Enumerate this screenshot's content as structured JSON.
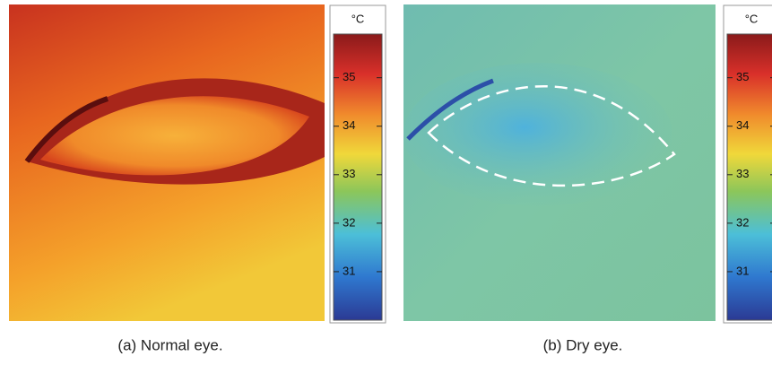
{
  "panels": [
    {
      "unit": "°C",
      "colorbar": {
        "range": [
          30,
          35.9
        ],
        "ticks": [
          35,
          34,
          33,
          32,
          31
        ]
      },
      "caption": "(a) Normal eye."
    },
    {
      "unit": "°C",
      "colorbar": {
        "range": [
          30,
          35.9
        ],
        "ticks": [
          35,
          34,
          33,
          32,
          31
        ]
      },
      "caption": "(b) Dry eye."
    }
  ]
}
